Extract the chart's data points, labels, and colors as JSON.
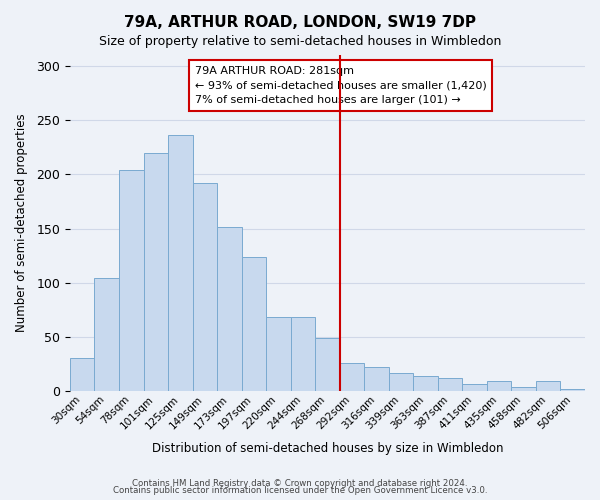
{
  "title1": "79A, ARTHUR ROAD, LONDON, SW19 7DP",
  "title2": "Size of property relative to semi-detached houses in Wimbledon",
  "xlabel": "Distribution of semi-detached houses by size in Wimbledon",
  "ylabel": "Number of semi-detached properties",
  "footer1": "Contains HM Land Registry data © Crown copyright and database right 2024.",
  "footer2": "Contains public sector information licensed under the Open Government Licence v3.0.",
  "bar_labels": [
    "30sqm",
    "54sqm",
    "78sqm",
    "101sqm",
    "125sqm",
    "149sqm",
    "173sqm",
    "197sqm",
    "220sqm",
    "244sqm",
    "268sqm",
    "292sqm",
    "316sqm",
    "339sqm",
    "363sqm",
    "387sqm",
    "411sqm",
    "435sqm",
    "458sqm",
    "482sqm",
    "506sqm"
  ],
  "bar_values": [
    31,
    104,
    204,
    220,
    236,
    192,
    151,
    124,
    68,
    68,
    49,
    26,
    22,
    17,
    14,
    12,
    7,
    9,
    4,
    9,
    2
  ],
  "bar_color": "#c8d9ee",
  "bar_edge_color": "#7aaad0",
  "grid_color": "#d0d8e8",
  "bg_color": "#eef2f8",
  "vline_x": 10.5,
  "vline_color": "#cc0000",
  "annotation_title": "79A ARTHUR ROAD: 281sqm",
  "annotation_line1": "← 93% of semi-detached houses are smaller (1,420)",
  "annotation_line2": "7% of semi-detached houses are larger (101) →",
  "annotation_box_color": "#ffffff",
  "annotation_box_edge": "#cc0000",
  "ylim": [
    0,
    310
  ],
  "yticks": [
    0,
    50,
    100,
    150,
    200,
    250,
    300
  ]
}
